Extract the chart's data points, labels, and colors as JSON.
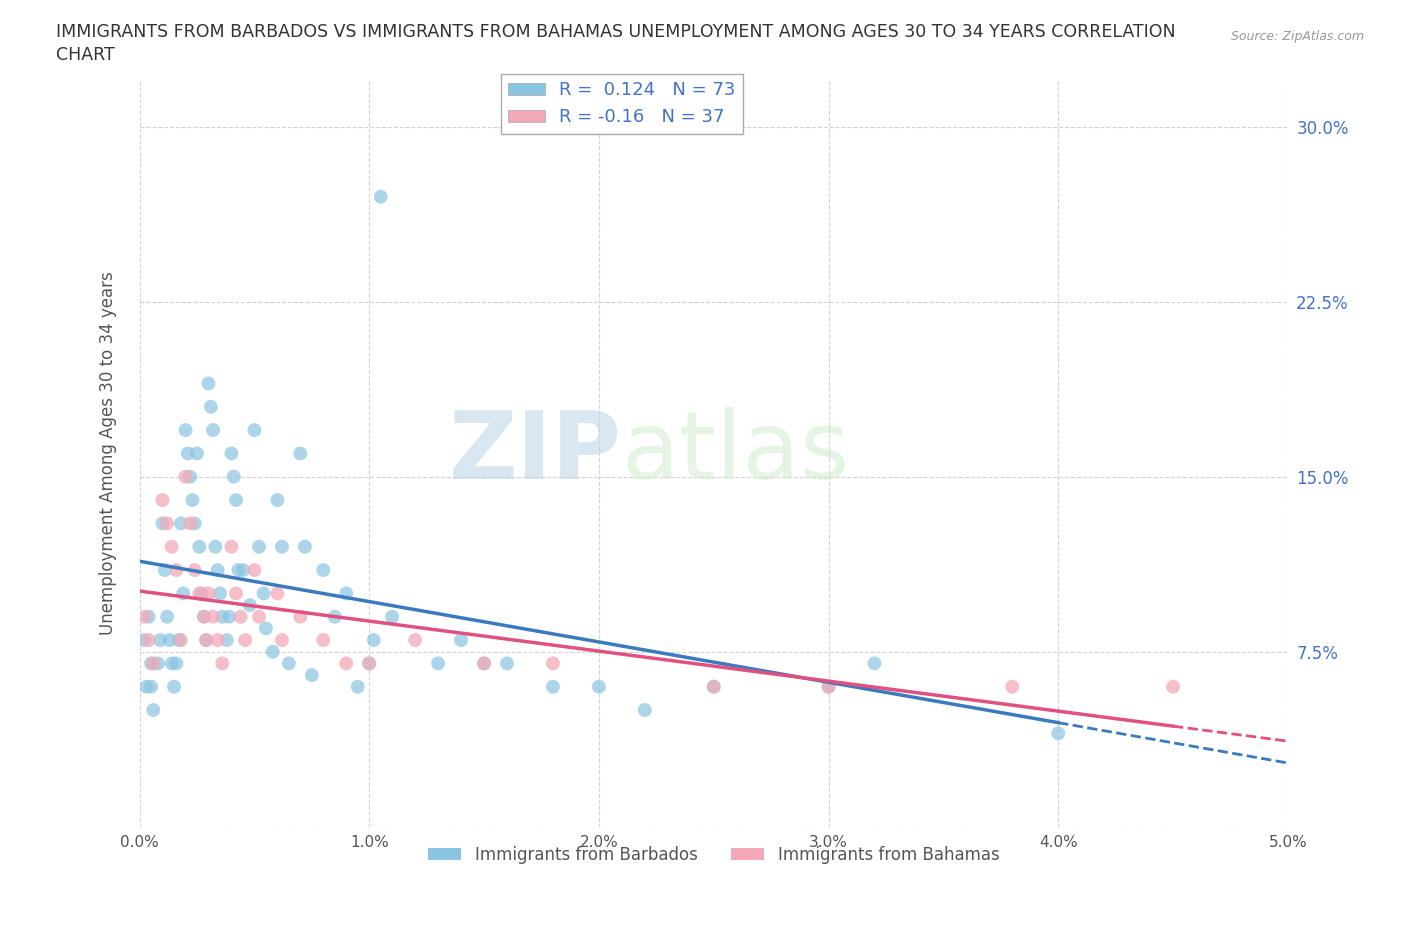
{
  "title_line1": "IMMIGRANTS FROM BARBADOS VS IMMIGRANTS FROM BAHAMAS UNEMPLOYMENT AMONG AGES 30 TO 34 YEARS CORRELATION",
  "title_line2": "CHART",
  "source_text": "Source: ZipAtlas.com",
  "ylabel": "Unemployment Among Ages 30 to 34 years",
  "xlim": [
    0.0,
    0.05
  ],
  "ylim": [
    0.0,
    0.32
  ],
  "xticks": [
    0.0,
    0.01,
    0.02,
    0.03,
    0.04,
    0.05
  ],
  "xtick_labels": [
    "0.0%",
    "1.0%",
    "2.0%",
    "3.0%",
    "4.0%",
    "5.0%"
  ],
  "yticks": [
    0.0,
    0.075,
    0.15,
    0.225,
    0.3
  ],
  "ytick_labels": [
    "",
    "7.5%",
    "15.0%",
    "22.5%",
    "30.0%"
  ],
  "barbados_color": "#89c4e1",
  "bahamas_color": "#f4a9b8",
  "trend_barbados_color": "#3a7abf",
  "trend_bahamas_color": "#e05080",
  "R_barbados": 0.124,
  "N_barbados": 73,
  "R_bahamas": -0.16,
  "N_bahamas": 37,
  "watermark_ZIP": "ZIP",
  "watermark_atlas": "atlas",
  "background_color": "#ffffff",
  "grid_color": "#c8c8c8",
  "barbados_x": [
    0.0002,
    0.0003,
    0.0004,
    0.0005,
    0.0006,
    0.001,
    0.0011,
    0.0012,
    0.0013,
    0.0014,
    0.0015,
    0.0016,
    0.0017,
    0.0018,
    0.002,
    0.0021,
    0.0022,
    0.0023,
    0.0024,
    0.0025,
    0.0026,
    0.0027,
    0.0028,
    0.0029,
    0.003,
    0.0031,
    0.0032,
    0.0033,
    0.0034,
    0.0035,
    0.0036,
    0.004,
    0.0041,
    0.0042,
    0.0043,
    0.005,
    0.0052,
    0.0054,
    0.006,
    0.0062,
    0.007,
    0.0072,
    0.008,
    0.0085,
    0.009,
    0.01,
    0.0102,
    0.0105,
    0.011,
    0.013,
    0.014,
    0.015,
    0.016,
    0.018,
    0.02,
    0.022,
    0.025,
    0.03,
    0.032,
    0.04,
    0.0005,
    0.0008,
    0.0009,
    0.0019,
    0.0038,
    0.0039,
    0.0045,
    0.0048,
    0.0055,
    0.0058,
    0.0065,
    0.0075,
    0.0095
  ],
  "barbados_y": [
    0.08,
    0.06,
    0.09,
    0.07,
    0.05,
    0.13,
    0.11,
    0.09,
    0.08,
    0.07,
    0.06,
    0.07,
    0.08,
    0.13,
    0.17,
    0.16,
    0.15,
    0.14,
    0.13,
    0.16,
    0.12,
    0.1,
    0.09,
    0.08,
    0.19,
    0.18,
    0.17,
    0.12,
    0.11,
    0.1,
    0.09,
    0.16,
    0.15,
    0.14,
    0.11,
    0.17,
    0.12,
    0.1,
    0.14,
    0.12,
    0.16,
    0.12,
    0.11,
    0.09,
    0.1,
    0.07,
    0.08,
    0.27,
    0.09,
    0.07,
    0.08,
    0.07,
    0.07,
    0.06,
    0.06,
    0.05,
    0.06,
    0.06,
    0.07,
    0.04,
    0.06,
    0.07,
    0.08,
    0.1,
    0.08,
    0.09,
    0.11,
    0.095,
    0.085,
    0.075,
    0.07,
    0.065,
    0.06
  ],
  "bahamas_x": [
    0.0002,
    0.0004,
    0.0006,
    0.001,
    0.0012,
    0.0014,
    0.0016,
    0.0018,
    0.002,
    0.0022,
    0.0024,
    0.0026,
    0.0028,
    0.0029,
    0.003,
    0.0032,
    0.0034,
    0.0036,
    0.004,
    0.0042,
    0.0044,
    0.0046,
    0.005,
    0.0052,
    0.006,
    0.0062,
    0.007,
    0.008,
    0.009,
    0.01,
    0.012,
    0.015,
    0.018,
    0.025,
    0.03,
    0.038,
    0.045
  ],
  "bahamas_y": [
    0.09,
    0.08,
    0.07,
    0.14,
    0.13,
    0.12,
    0.11,
    0.08,
    0.15,
    0.13,
    0.11,
    0.1,
    0.09,
    0.08,
    0.1,
    0.09,
    0.08,
    0.07,
    0.12,
    0.1,
    0.09,
    0.08,
    0.11,
    0.09,
    0.1,
    0.08,
    0.09,
    0.08,
    0.07,
    0.07,
    0.08,
    0.07,
    0.07,
    0.06,
    0.06,
    0.06,
    0.06
  ]
}
